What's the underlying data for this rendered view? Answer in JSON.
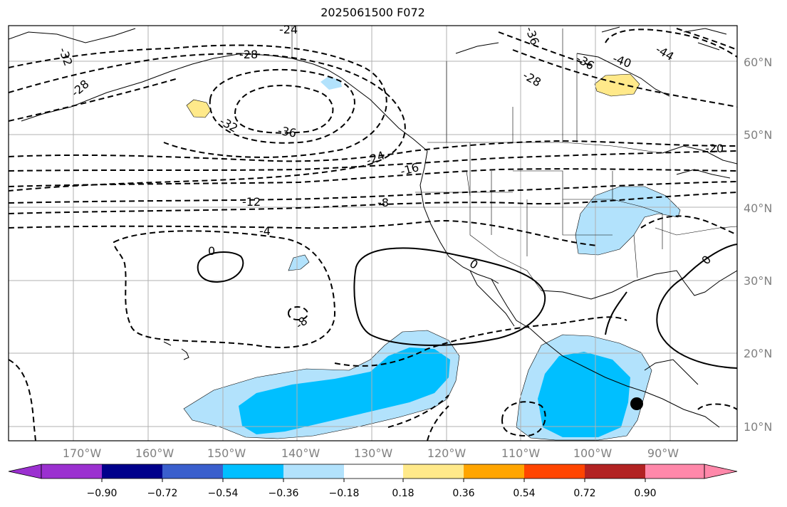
{
  "title": "2025061500 F072",
  "map": {
    "lon_ticks": [
      "170°W",
      "160°W",
      "150°W",
      "140°W",
      "130°W",
      "120°W",
      "110°W",
      "100°W",
      "90°W"
    ],
    "lat_ticks": [
      "60°N",
      "50°N",
      "40°N",
      "30°N",
      "20°N",
      "10°N"
    ],
    "contour_labels": [
      "-24",
      "-32",
      "-28",
      "-28",
      "-32",
      "-36",
      "-36",
      "-28",
      "-36",
      "-40",
      "-44",
      "-24",
      "-16",
      "-20",
      "-12",
      "-8",
      "-4",
      "0",
      "0",
      "-8",
      "0"
    ],
    "marker": "black-dot"
  },
  "colorbar": {
    "colors": [
      "#9b30d0",
      "#00008b",
      "#3a5fcd",
      "#00bfff",
      "#b2e2fc",
      "#ffffff",
      "#ffe98a",
      "#ffa500",
      "#ff4500",
      "#b22222",
      "#ff88aa"
    ],
    "tick_labels": [
      "−0.90",
      "−0.72",
      "−0.54",
      "−0.36",
      "−0.18",
      "0.18",
      "0.36",
      "0.54",
      "0.72",
      "0.90"
    ]
  }
}
